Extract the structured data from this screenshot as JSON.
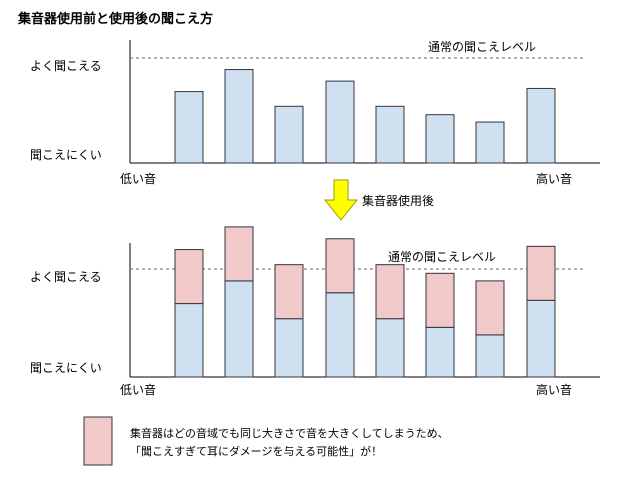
{
  "title": "集音器使用前と使用後の聞こえ方",
  "colors": {
    "bar_fill": "#cfe0f1",
    "bar_stroke": "#33333f",
    "boost_fill": "#f2c9c9",
    "arrow_fill": "#ffff00",
    "arrow_stroke": "#9a9a00",
    "axis": "#000000",
    "dashed": "#666666"
  },
  "top_chart": {
    "y_high_label": "よく聞こえる",
    "y_low_label": "聞こえにくい",
    "x_low_label": "低い音",
    "x_high_label": "高い音",
    "normal_label": "通常の聞こえレベル",
    "normal_level": 1.0,
    "bars": [
      0.68,
      0.89,
      0.54,
      0.78,
      0.54,
      0.46,
      0.39,
      0.71
    ]
  },
  "arrow": {
    "label": "集音器使用後",
    "icon": "down-arrow-icon"
  },
  "bottom_chart": {
    "y_high_label": "よく聞こえる",
    "y_low_label": "聞こえにくい",
    "x_low_label": "低い音",
    "x_high_label": "高い音",
    "normal_label": "通常の聞こえレベル",
    "normal_level": 1.0,
    "bars": [
      {
        "base": 0.68,
        "boost": 0.5
      },
      {
        "base": 0.89,
        "boost": 0.5
      },
      {
        "base": 0.54,
        "boost": 0.5
      },
      {
        "base": 0.78,
        "boost": 0.5
      },
      {
        "base": 0.54,
        "boost": 0.5
      },
      {
        "base": 0.46,
        "boost": 0.5
      },
      {
        "base": 0.39,
        "boost": 0.5
      },
      {
        "base": 0.71,
        "boost": 0.5
      }
    ]
  },
  "legend": {
    "text_line1": "集音器はどの音域でも同じ大きさで音を大きくしてしまうため、",
    "text_line2": "「聞こえすぎて耳にダメージを与える可能性」が！"
  }
}
